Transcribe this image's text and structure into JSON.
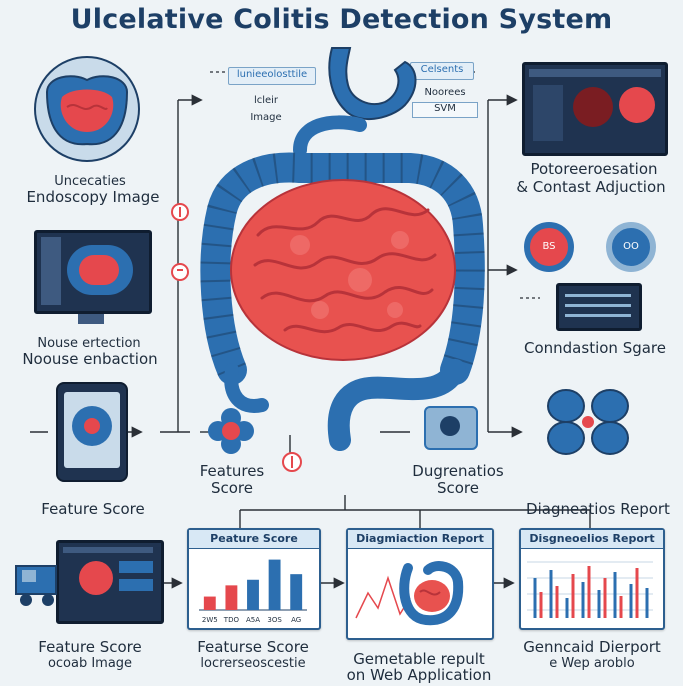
{
  "title": "Ulcelative Colitis Detection System",
  "top_center": {
    "input_box": "lunieeolosttile",
    "input_sub1": "lcleir",
    "input_sub2": "Image",
    "right_box": "Celsents",
    "right_sub1": "Noorees",
    "right_sub2": "SVM"
  },
  "left": {
    "item1_line1": "Uncecaties",
    "item1_line2": "Endoscopy Image",
    "item2_line1": "Nouse ertection",
    "item2_line2": "Noouse enbaction",
    "item3": "Feature Score"
  },
  "center": {
    "features_line1": "Features",
    "features_line2": "Score",
    "diag_line1": "Dugrenatios",
    "diag_line2": "Score"
  },
  "right": {
    "item1_line1": "Potoreeroesation",
    "item1_line2": "& Contast Adjuction",
    "gauge1": "BS",
    "gauge2": "OO",
    "item2": "Conndastion Sgare",
    "item3": "Diagneatios Report"
  },
  "bottom": {
    "panel1_label1": "Feature Score",
    "panel1_label2": "ocoab Image",
    "panel2_title": "Peature Score",
    "panel2_ticks": [
      "2W5",
      "TDO",
      "A5A",
      "3OS",
      "AG"
    ],
    "panel2_label1": "Featurse Score",
    "panel2_label2": "locrerseoscestie",
    "panel3_title": "Diagmiaction Report",
    "panel3_label1": "Gemetable repult",
    "panel3_label2": "on Web Application",
    "panel4_title": "Disgneoelios Report",
    "panel4_label1": "Genncaid Dierport",
    "panel4_label2": "e Wep aroblo"
  },
  "colors": {
    "accent_blue": "#2c6fb0",
    "dark_blue": "#1d3f66",
    "red": "#e5484d",
    "arrow": "#2a2f36"
  },
  "chart_data": [
    {
      "type": "bar",
      "title": "Peature Score",
      "categories": [
        "2W5",
        "TDO",
        "A5A",
        "3OS",
        "AG"
      ],
      "series": [
        {
          "values": [
            12,
            22,
            27,
            45,
            32
          ]
        }
      ],
      "bar_colors": [
        "#e5484d",
        "#e5484d",
        "#2c6fb0",
        "#2c6fb0",
        "#2c6fb0"
      ],
      "ylim": [
        0,
        50
      ]
    }
  ]
}
